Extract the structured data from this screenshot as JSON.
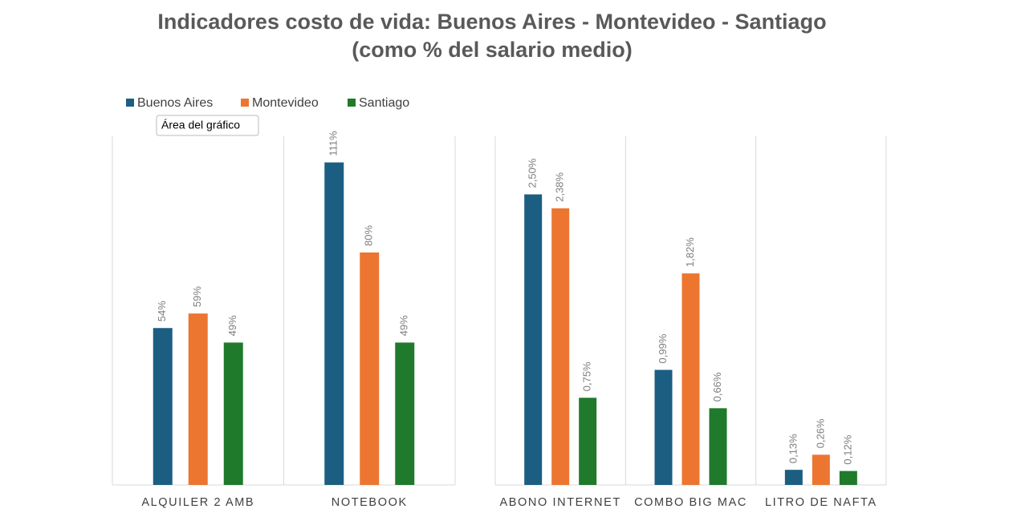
{
  "tooltip": "Área del gráfico",
  "chart_data": [
    {
      "type": "bar",
      "title": "Indicadores costo de vida: Buenos Aires - Montevideo - Santiago",
      "subtitle": "(como % del salario medio)",
      "categories": [
        "ALQUILER 2 AMB",
        "NOTEBOOK"
      ],
      "ylim": [
        0,
        120
      ],
      "series": [
        {
          "name": "Buenos Aires",
          "color": "#1b5e82",
          "values": [
            54,
            111
          ],
          "value_labels": [
            "54%",
            "111%"
          ]
        },
        {
          "name": "Montevideo",
          "color": "#ec7630",
          "values": [
            59,
            80
          ],
          "value_labels": [
            "59%",
            "80%"
          ]
        },
        {
          "name": "Santiago",
          "color": "#1f7a2b",
          "values": [
            49,
            49
          ],
          "value_labels": [
            "49%",
            "49%"
          ]
        }
      ]
    },
    {
      "type": "bar",
      "categories": [
        "ABONO INTERNET",
        "COMBO BIG MAC",
        "LITRO DE NAFTA"
      ],
      "ylim": [
        0,
        3
      ],
      "series": [
        {
          "color": "#1b5e82",
          "values": [
            2.5,
            0.99,
            0.13
          ],
          "value_labels": [
            "2,50%",
            "0,99%",
            "0,13%"
          ]
        },
        {
          "color": "#ec7630",
          "values": [
            2.38,
            1.82,
            0.26
          ],
          "value_labels": [
            "2,38%",
            "1,82%",
            "0,26%"
          ]
        },
        {
          "color": "#1f7a2b",
          "values": [
            0.75,
            0.66,
            0.12
          ],
          "value_labels": [
            "0,75%",
            "0,66%",
            "0,12%"
          ]
        }
      ]
    }
  ]
}
